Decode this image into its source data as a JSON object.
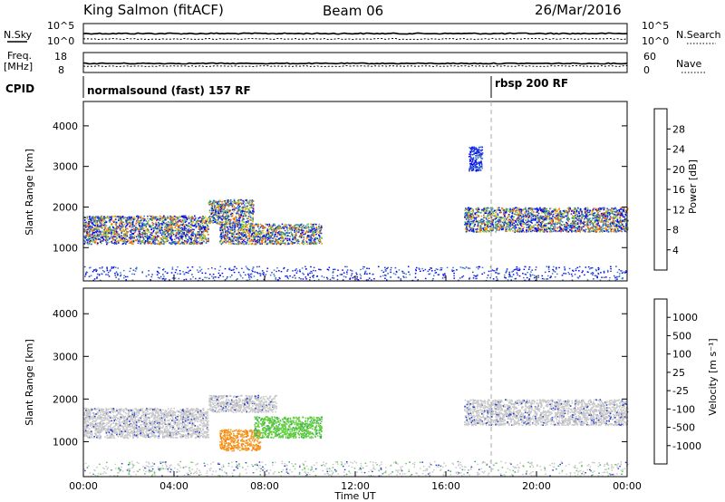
{
  "header": {
    "station": "King Salmon (fitACF)",
    "beam": "Beam 06",
    "date": "26/Mar/2016"
  },
  "summary": {
    "nsky_label": "N.Sky",
    "nsky_ticks": [
      "10^5",
      "10^0"
    ],
    "nsearch_label": "N.Search",
    "nsearch_ticks": [
      "10^5",
      "10^0"
    ],
    "freq_label_1": "Freq.",
    "freq_label_2": "[MHz]",
    "freq_ticks": [
      "18",
      "8"
    ],
    "nave_label": "Nave",
    "nave_ticks": [
      "60",
      "0"
    ],
    "cpid_label": "CPID",
    "cpid_modes": [
      {
        "name": "normalsound (fast) 157 RF",
        "start_hour": 0
      },
      {
        "name": "rbsp 200 RF",
        "start_hour": 18
      }
    ]
  },
  "chart_data": [
    {
      "type": "heatmap",
      "name": "power",
      "ylabel": "Slant Range [km]",
      "xlabel": "",
      "ylim": [
        180,
        4600
      ],
      "xlim": [
        0,
        24
      ],
      "y_ticks": [
        1000,
        2000,
        3000,
        4000
      ],
      "x_ticks": [
        "00:00",
        "04:00",
        "08:00",
        "12:00",
        "16:00",
        "20:00",
        "00:00"
      ],
      "colorbar": {
        "label": "Power [dB]",
        "ticks": [
          "28",
          "24",
          "20",
          "16",
          "12",
          "8",
          "4"
        ],
        "colors": [
          "#0000ff",
          "#2a40c8",
          "#3a7ec8",
          "#3aa06a",
          "#64c850",
          "#d8d020",
          "#ff9600",
          "#ff5a00",
          "#ff0000"
        ]
      },
      "regions": [
        {
          "t0": 0.0,
          "t1": 5.5,
          "r0": 1100,
          "r1": 1800,
          "level": "mixed"
        },
        {
          "t0": 5.5,
          "t1": 7.5,
          "r0": 1600,
          "r1": 2200,
          "level": "mixed"
        },
        {
          "t0": 6.0,
          "t1": 10.5,
          "r0": 1100,
          "r1": 1600,
          "level": "mixed"
        },
        {
          "t0": 16.8,
          "t1": 24.0,
          "r0": 1400,
          "r1": 2000,
          "level": "mixed"
        },
        {
          "t0": 17.0,
          "t1": 17.6,
          "r0": 2900,
          "r1": 3500,
          "level": "low"
        }
      ]
    },
    {
      "type": "heatmap",
      "name": "velocity",
      "ylabel": "Slant Range [km]",
      "xlabel": "Time UT",
      "ylim": [
        180,
        4600
      ],
      "xlim": [
        0,
        24
      ],
      "y_ticks": [
        1000,
        2000,
        3000,
        4000
      ],
      "x_ticks": [
        "00:00",
        "04:00",
        "08:00",
        "12:00",
        "16:00",
        "20:00",
        "00:00"
      ],
      "colorbar": {
        "label": "Velocity [m s⁻¹]",
        "ticks": [
          "1000",
          "500",
          "100",
          "25",
          "-25",
          "-100",
          "-500",
          "-1000"
        ],
        "colors": [
          "#ff0000",
          "#ff5a00",
          "#ff9600",
          "#f0b040",
          "#c8c8c8",
          "#c8c8c8",
          "#64c850",
          "#3aa06a",
          "#2a40c8"
        ]
      },
      "regions": [
        {
          "t0": 0.0,
          "t1": 5.5,
          "r0": 1100,
          "r1": 1800,
          "level": "near-zero"
        },
        {
          "t0": 5.5,
          "t1": 8.5,
          "r0": 1700,
          "r1": 2100,
          "level": "near-zero"
        },
        {
          "t0": 6.0,
          "t1": 7.8,
          "r0": 800,
          "r1": 1300,
          "level": "negative"
        },
        {
          "t0": 7.5,
          "t1": 10.5,
          "r0": 1100,
          "r1": 1600,
          "level": "positive"
        },
        {
          "t0": 16.8,
          "t1": 24.0,
          "r0": 1400,
          "r1": 2000,
          "level": "near-zero"
        }
      ]
    }
  ]
}
